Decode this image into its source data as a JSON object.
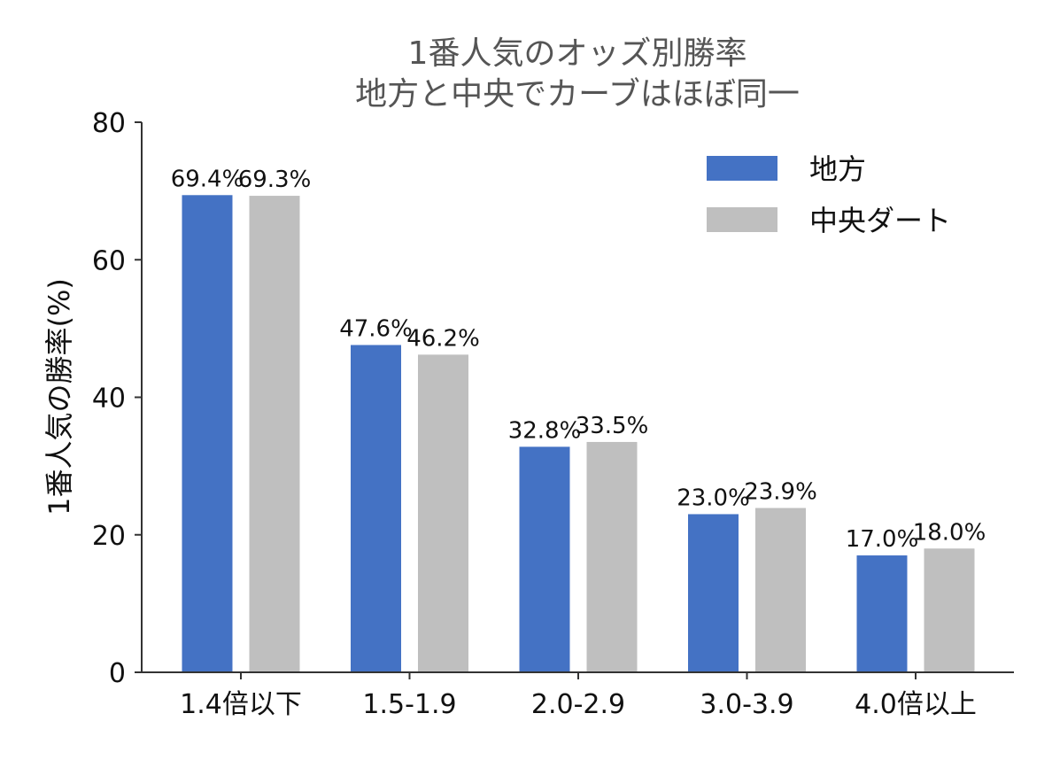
{
  "chart_data": {
    "type": "bar",
    "title": [
      "1番人気のオッズ別勝率",
      "地方と中央でカーブはほぼ同一"
    ],
    "xlabel": "",
    "ylabel": "1番人気の勝率(%)",
    "categories": [
      "1.4倍以下",
      "1.5-1.9",
      "2.0-2.9",
      "3.0-3.9",
      "4.0倍以上"
    ],
    "series": [
      {
        "name": "地方",
        "color": "#4472c4",
        "values": [
          69.4,
          47.6,
          32.8,
          23.0,
          17.0
        ],
        "labels": [
          "69.4%",
          "47.6%",
          "32.8%",
          "23.0%",
          "17.0%"
        ]
      },
      {
        "name": "中央ダート",
        "color": "#bfbfbf",
        "values": [
          69.3,
          46.2,
          33.5,
          23.9,
          18.0
        ],
        "labels": [
          "69.3%",
          "46.2%",
          "33.5%",
          "23.9%",
          "18.0%"
        ]
      }
    ],
    "ylim": [
      0,
      80
    ],
    "yticks": [
      0,
      20,
      40,
      60,
      80
    ],
    "ytick_labels": [
      "0",
      "20",
      "40",
      "60",
      "80"
    ],
    "grid": false,
    "legend_position": "top-right"
  }
}
